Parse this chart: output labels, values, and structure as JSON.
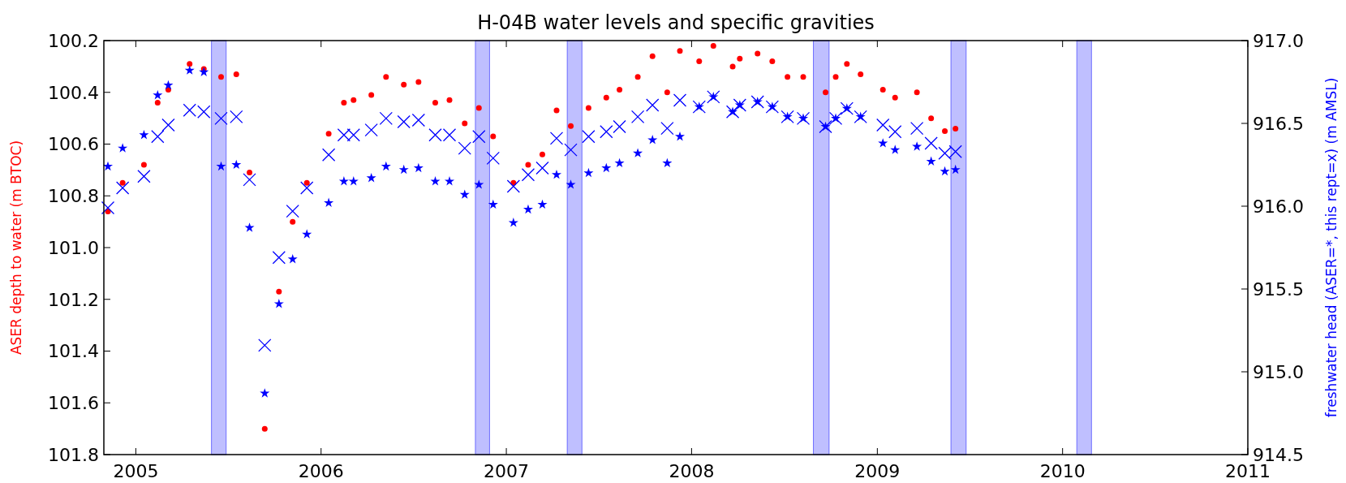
{
  "chart_data": {
    "type": "scatter",
    "title": "H-04B water levels and specific gravities",
    "ylabel": "ASER depth to water (m BTOC)",
    "y2label": "freshwater head (ASER=*, this rept=x) (m AMSL)",
    "x": [
      "2004-11-07",
      "2004-12-06",
      "2005-01-17",
      "2005-02-13",
      "2005-03-06",
      "2005-04-17",
      "2005-05-15",
      "2005-06-18",
      "2005-07-18",
      "2005-08-13",
      "2005-09-12",
      "2005-10-10",
      "2005-11-06",
      "2005-12-04",
      "2006-01-16",
      "2006-02-15",
      "2006-03-06",
      "2006-04-10",
      "2006-05-09",
      "2006-06-13",
      "2006-07-12",
      "2006-08-14",
      "2006-09-11",
      "2006-10-11",
      "2006-11-08",
      "2006-12-06",
      "2007-01-15",
      "2007-02-13",
      "2007-03-13",
      "2007-04-10",
      "2007-05-08",
      "2007-06-12",
      "2007-07-17",
      "2007-08-12",
      "2007-09-17",
      "2007-10-16",
      "2007-11-14",
      "2007-12-09",
      "2008-01-16",
      "2008-02-13",
      "2008-03-22",
      "2008-04-05",
      "2008-05-10",
      "2008-06-08",
      "2008-07-08",
      "2008-08-08",
      "2008-09-21",
      "2008-10-11",
      "2008-11-02",
      "2008-11-29",
      "2009-01-12",
      "2009-02-05",
      "2009-03-20",
      "2009-04-17",
      "2009-05-14",
      "2009-06-04"
    ],
    "series": [
      {
        "color": "#ff0000",
        "marker": "circle",
        "values": [
          100.86,
          100.75,
          100.68,
          100.44,
          100.39,
          100.29,
          100.31,
          100.34,
          100.33,
          100.71,
          101.7,
          101.17,
          100.9,
          100.75,
          100.56,
          100.44,
          100.43,
          100.41,
          100.34,
          100.37,
          100.36,
          100.44,
          100.43,
          100.52,
          100.46,
          100.57,
          100.75,
          100.68,
          100.64,
          100.47,
          100.53,
          100.46,
          100.42,
          100.39,
          100.34,
          100.26,
          100.4,
          100.24,
          100.28,
          100.22,
          100.3,
          100.27,
          100.25,
          100.28,
          100.34,
          100.34,
          100.4,
          100.34,
          100.29,
          100.33,
          100.39,
          100.42,
          100.4,
          100.5,
          100.55,
          100.54
        ]
      },
      {
        "color": "#0000ff",
        "marker": "star",
        "axis": "y2",
        "values": [
          916.24,
          916.35,
          916.43,
          916.67,
          916.73,
          916.82,
          916.81,
          916.24,
          916.25,
          915.87,
          914.87,
          915.41,
          915.68,
          915.83,
          916.02,
          916.15,
          916.15,
          916.17,
          916.24,
          916.22,
          916.23,
          916.15,
          916.15,
          916.07,
          916.13,
          916.01,
          915.9,
          915.98,
          916.01,
          916.19,
          916.13,
          916.2,
          916.23,
          916.26,
          916.32,
          916.4,
          916.26,
          916.42,
          916.6,
          916.66,
          916.57,
          916.61,
          916.63,
          916.6,
          916.54,
          916.53,
          916.48,
          916.53,
          916.59,
          916.54,
          916.38,
          916.34,
          916.36,
          916.27,
          916.21,
          916.22
        ]
      },
      {
        "color": "#0000ff",
        "marker": "cross",
        "axis": "y2",
        "values": [
          915.99,
          916.11,
          916.18,
          916.42,
          916.49,
          916.58,
          916.57,
          916.53,
          916.54,
          916.16,
          915.16,
          915.69,
          915.97,
          916.11,
          916.31,
          916.43,
          916.43,
          916.46,
          916.53,
          916.51,
          916.52,
          916.43,
          916.43,
          916.35,
          916.42,
          916.29,
          916.12,
          916.19,
          916.23,
          916.41,
          916.34,
          916.42,
          916.45,
          916.48,
          916.54,
          916.61,
          916.47,
          916.64,
          916.6,
          916.66,
          916.57,
          916.61,
          916.63,
          916.6,
          916.54,
          916.53,
          916.48,
          916.53,
          916.59,
          916.54,
          916.49,
          916.45,
          916.47,
          916.38,
          916.32,
          916.33
        ]
      }
    ],
    "xlim": [
      "2004-10-30",
      "2011-01-01"
    ],
    "xticks": [
      "2005",
      "2006",
      "2007",
      "2008",
      "2009",
      "2010",
      "2011"
    ],
    "ylim": [
      101.8,
      100.2
    ],
    "yticks": [
      {
        "value": 100.2,
        "label": "100.2"
      },
      {
        "value": 100.4,
        "label": "100.4"
      },
      {
        "value": 100.6,
        "label": "100.6"
      },
      {
        "value": 100.8,
        "label": "100.8"
      },
      {
        "value": 101,
        "label": "101.0"
      },
      {
        "value": 101.2,
        "label": "101.2"
      },
      {
        "value": 101.4,
        "label": "101.4"
      },
      {
        "value": 101.6,
        "label": "101.6"
      },
      {
        "value": 101.8,
        "label": "101.8"
      }
    ],
    "y2lim": [
      914.5,
      917
    ],
    "y2ticks": [
      {
        "value": 914.5,
        "label": "914.5"
      },
      {
        "value": 915,
        "label": "915.0"
      },
      {
        "value": 915.5,
        "label": "915.5"
      },
      {
        "value": 916,
        "label": "916.0"
      },
      {
        "value": 916.5,
        "label": "916.5"
      },
      {
        "value": 917,
        "label": "917.0"
      }
    ],
    "bands": [
      {
        "axis": "x",
        "from": "2005-05-30",
        "to": "2005-06-28",
        "color": "#0000ff"
      },
      {
        "axis": "x",
        "from": "2006-11-01",
        "to": "2006-11-29",
        "color": "#0000ff"
      },
      {
        "axis": "x",
        "from": "2007-05-01",
        "to": "2007-05-30",
        "color": "#0000ff"
      },
      {
        "axis": "x",
        "from": "2008-08-28",
        "to": "2008-09-28",
        "color": "#0000ff"
      },
      {
        "axis": "x",
        "from": "2009-05-26",
        "to": "2009-06-25",
        "color": "#0000ff"
      },
      {
        "axis": "x",
        "from": "2010-01-29",
        "to": "2010-02-27",
        "color": "#0000ff"
      }
    ]
  }
}
